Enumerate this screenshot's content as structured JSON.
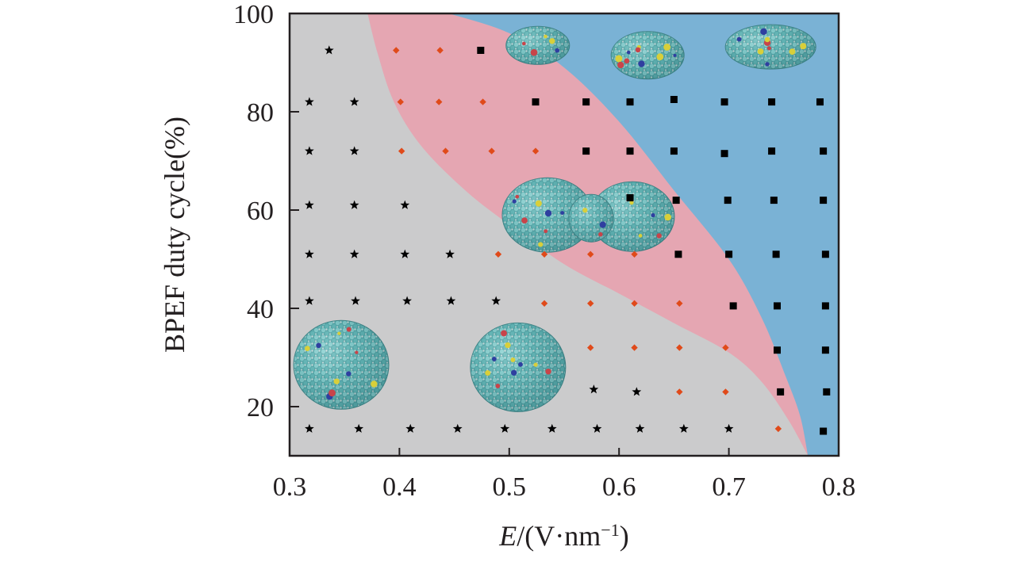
{
  "chart_data": {
    "type": "scatter",
    "title": "",
    "xlabel": {
      "italic": "E",
      "prefix": "/(V·nm",
      "sup": "−1",
      "suffix": ")"
    },
    "ylabel": "BPEF duty cycle(%)",
    "xlim": [
      0.3,
      0.8
    ],
    "ylim": [
      10,
      100
    ],
    "xticks": [
      0.3,
      0.4,
      0.5,
      0.6,
      0.7,
      0.8
    ],
    "xtick_labels": [
      "0.3",
      "0.4",
      "0.5",
      "0.6",
      "0.7",
      "0.8"
    ],
    "yticks": [
      20,
      40,
      60,
      80,
      100
    ],
    "ytick_labels": [
      "20",
      "40",
      "60",
      "80",
      "100"
    ],
    "grid": false,
    "legend": null,
    "regions": [
      {
        "name": "gray",
        "color": "#cbcbcc"
      },
      {
        "name": "pink",
        "color": "#e5a6b2"
      },
      {
        "name": "blue",
        "color": "#7ab2d5"
      }
    ],
    "region_boundaries": {
      "gray_pink": [
        [
          0.371,
          100
        ],
        [
          0.38,
          92
        ],
        [
          0.395,
          82
        ],
        [
          0.42,
          73
        ],
        [
          0.46,
          64
        ],
        [
          0.5,
          57
        ],
        [
          0.55,
          49
        ],
        [
          0.6,
          43
        ],
        [
          0.65,
          37
        ],
        [
          0.7,
          31
        ],
        [
          0.73,
          25
        ],
        [
          0.755,
          17
        ],
        [
          0.772,
          10
        ]
      ],
      "pink_blue": [
        [
          0.445,
          100
        ],
        [
          0.5,
          96
        ],
        [
          0.55,
          89
        ],
        [
          0.6,
          78
        ],
        [
          0.65,
          64
        ],
        [
          0.7,
          50
        ],
        [
          0.73,
          38
        ],
        [
          0.752,
          26
        ],
        [
          0.765,
          18
        ],
        [
          0.772,
          10
        ]
      ]
    },
    "series": [
      {
        "marker": "star",
        "color": "#000000",
        "points": [
          [
            0.336,
            92.5
          ],
          [
            0.318,
            82
          ],
          [
            0.359,
            82
          ],
          [
            0.318,
            72
          ],
          [
            0.359,
            72
          ],
          [
            0.318,
            61
          ],
          [
            0.359,
            61
          ],
          [
            0.405,
            61
          ],
          [
            0.318,
            51
          ],
          [
            0.359,
            51
          ],
          [
            0.405,
            51
          ],
          [
            0.446,
            51
          ],
          [
            0.318,
            41.5
          ],
          [
            0.36,
            41.5
          ],
          [
            0.407,
            41.5
          ],
          [
            0.447,
            41.5
          ],
          [
            0.488,
            41.5
          ],
          [
            0.577,
            23.5
          ],
          [
            0.616,
            23
          ],
          [
            0.318,
            15.5
          ],
          [
            0.363,
            15.5
          ],
          [
            0.41,
            15.5
          ],
          [
            0.453,
            15.5
          ],
          [
            0.496,
            15.5
          ],
          [
            0.539,
            15.5
          ],
          [
            0.58,
            15.5
          ],
          [
            0.619,
            15.5
          ],
          [
            0.659,
            15.5
          ],
          [
            0.7,
            15.5
          ]
        ]
      },
      {
        "marker": "diamond",
        "color": "#e04a1a",
        "points": [
          [
            0.397,
            92.5
          ],
          [
            0.437,
            92.5
          ],
          [
            0.401,
            82
          ],
          [
            0.436,
            82
          ],
          [
            0.476,
            82
          ],
          [
            0.402,
            72
          ],
          [
            0.442,
            72
          ],
          [
            0.484,
            72
          ],
          [
            0.524,
            72
          ],
          [
            0.49,
            51
          ],
          [
            0.532,
            51
          ],
          [
            0.574,
            51
          ],
          [
            0.614,
            51
          ],
          [
            0.532,
            41
          ],
          [
            0.574,
            41
          ],
          [
            0.614,
            41
          ],
          [
            0.655,
            41
          ],
          [
            0.574,
            32
          ],
          [
            0.614,
            32
          ],
          [
            0.655,
            32
          ],
          [
            0.697,
            32
          ],
          [
            0.655,
            23
          ],
          [
            0.697,
            23
          ],
          [
            0.745,
            15.5
          ]
        ]
      },
      {
        "marker": "square",
        "color": "#000000",
        "points": [
          [
            0.474,
            92.5
          ],
          [
            0.524,
            82
          ],
          [
            0.57,
            82
          ],
          [
            0.61,
            82
          ],
          [
            0.65,
            82.5
          ],
          [
            0.696,
            82
          ],
          [
            0.739,
            82
          ],
          [
            0.783,
            82
          ],
          [
            0.57,
            72
          ],
          [
            0.61,
            72
          ],
          [
            0.65,
            72
          ],
          [
            0.696,
            71.5
          ],
          [
            0.739,
            72
          ],
          [
            0.786,
            72
          ],
          [
            0.61,
            62.5
          ],
          [
            0.652,
            62
          ],
          [
            0.699,
            62
          ],
          [
            0.741,
            62
          ],
          [
            0.786,
            62
          ],
          [
            0.654,
            51
          ],
          [
            0.7,
            51
          ],
          [
            0.743,
            51
          ],
          [
            0.788,
            51
          ],
          [
            0.704,
            40.5
          ],
          [
            0.744,
            40.5
          ],
          [
            0.788,
            40.5
          ],
          [
            0.744,
            31.5
          ],
          [
            0.788,
            31.5
          ],
          [
            0.747,
            23
          ],
          [
            0.789,
            23
          ],
          [
            0.786,
            15
          ]
        ]
      }
    ],
    "insets": [
      {
        "name": "sphere-cluster-left",
        "shape": "sphere",
        "x": 0.347,
        "y": 28.5
      },
      {
        "name": "sphere-cluster-middle",
        "shape": "sphere",
        "x": 0.508,
        "y": 28.0
      },
      {
        "name": "dumbbell-cluster",
        "shape": "dumbbell",
        "x": 0.576,
        "y": 59.0
      },
      {
        "name": "small-flat-cluster",
        "shape": "flat",
        "x": 0.526,
        "y": 93.5
      },
      {
        "name": "medium-ellipse-cluster",
        "shape": "ellipse",
        "x": 0.626,
        "y": 91.5
      },
      {
        "name": "large-ellipse-cluster",
        "shape": "ellipse",
        "x": 0.738,
        "y": 93.2
      }
    ]
  }
}
